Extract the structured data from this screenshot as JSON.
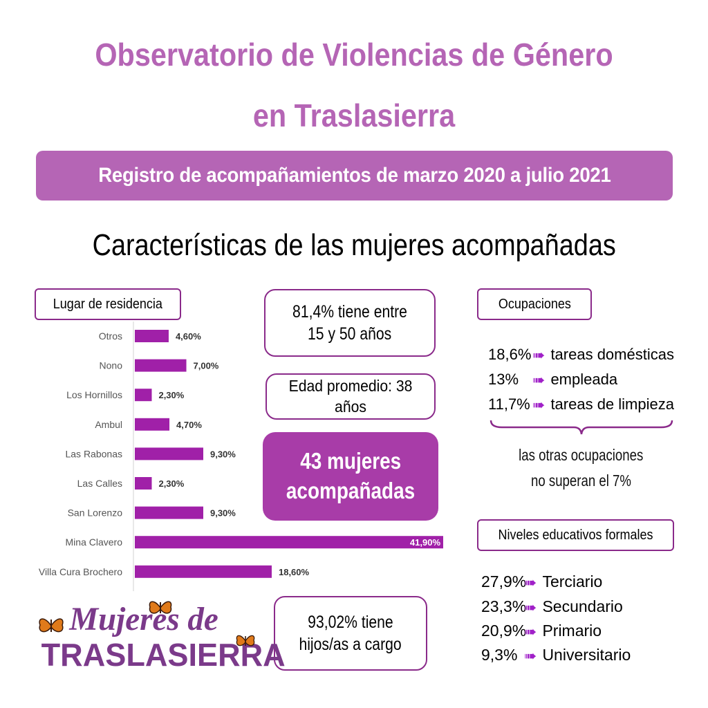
{
  "header": {
    "title_line1": "Observatorio de Violencias de Género",
    "title_line2": "en Traslasierra",
    "banner": "Registro de acompañamientos de marzo 2020 a julio 2021",
    "section_title": "Características de las mujeres acompañadas"
  },
  "colors": {
    "title": "#b565b5",
    "banner_bg": "#b565b5",
    "bar": "#a020a8",
    "box_border": "#8a2a8a",
    "highlight_box": "#a83ca8",
    "arrow": "#a020c8"
  },
  "residencia": {
    "label": "Lugar de residencia"
  },
  "chart_data": {
    "type": "bar",
    "orientation": "horizontal",
    "categories": [
      "Otros",
      "Nono",
      "Los Hornillos",
      "Ambul",
      "Las Rabonas",
      "Las Calles",
      "San Lorenzo",
      "Mina Clavero",
      "Villa Cura Brochero"
    ],
    "values": [
      4.6,
      7.0,
      2.3,
      4.7,
      9.3,
      2.3,
      9.3,
      41.9,
      18.6
    ],
    "value_labels": [
      "4,60%",
      "7,00%",
      "2,30%",
      "4,70%",
      "9,30%",
      "2,30%",
      "9,30%",
      "41,90%",
      "18,60%"
    ],
    "title": "Lugar de residencia",
    "xlim": [
      0,
      41.9
    ],
    "grid": false
  },
  "stats": {
    "age_range": "81,4% tiene entre 15 y 50 años",
    "age_line1": "81,4% tiene entre",
    "age_line2": "15 y 50 años",
    "avg_age": "Edad promedio: 38 años",
    "total_line1": "43 mujeres",
    "total_line2": "acompañadas",
    "kids_line1": "93,02% tiene",
    "kids_line2": "hijos/as a cargo"
  },
  "ocupaciones": {
    "label": "Ocupaciones",
    "items": [
      {
        "pct": "18,6%",
        "text": "tareas domésticas"
      },
      {
        "pct": "13%",
        "text": "empleada"
      },
      {
        "pct": "11,7%",
        "text": "tareas de limpieza"
      }
    ],
    "note_line1": "las otras ocupaciones",
    "note_line2": "no superan el 7%"
  },
  "niveles": {
    "label": "Niveles educativos formales",
    "items": [
      {
        "pct": "27,9%",
        "text": "Terciario"
      },
      {
        "pct": "23,3%",
        "text": "Secundario"
      },
      {
        "pct": "20,9%",
        "text": "Primario"
      },
      {
        "pct": "9,3%",
        "text": "Universitario"
      }
    ]
  },
  "logo": {
    "line1": "Mujeres de",
    "line2": "TRASLASIERRA"
  },
  "icons": [
    "arrow-right-icon",
    "butterfly-icon",
    "brace-icon"
  ]
}
